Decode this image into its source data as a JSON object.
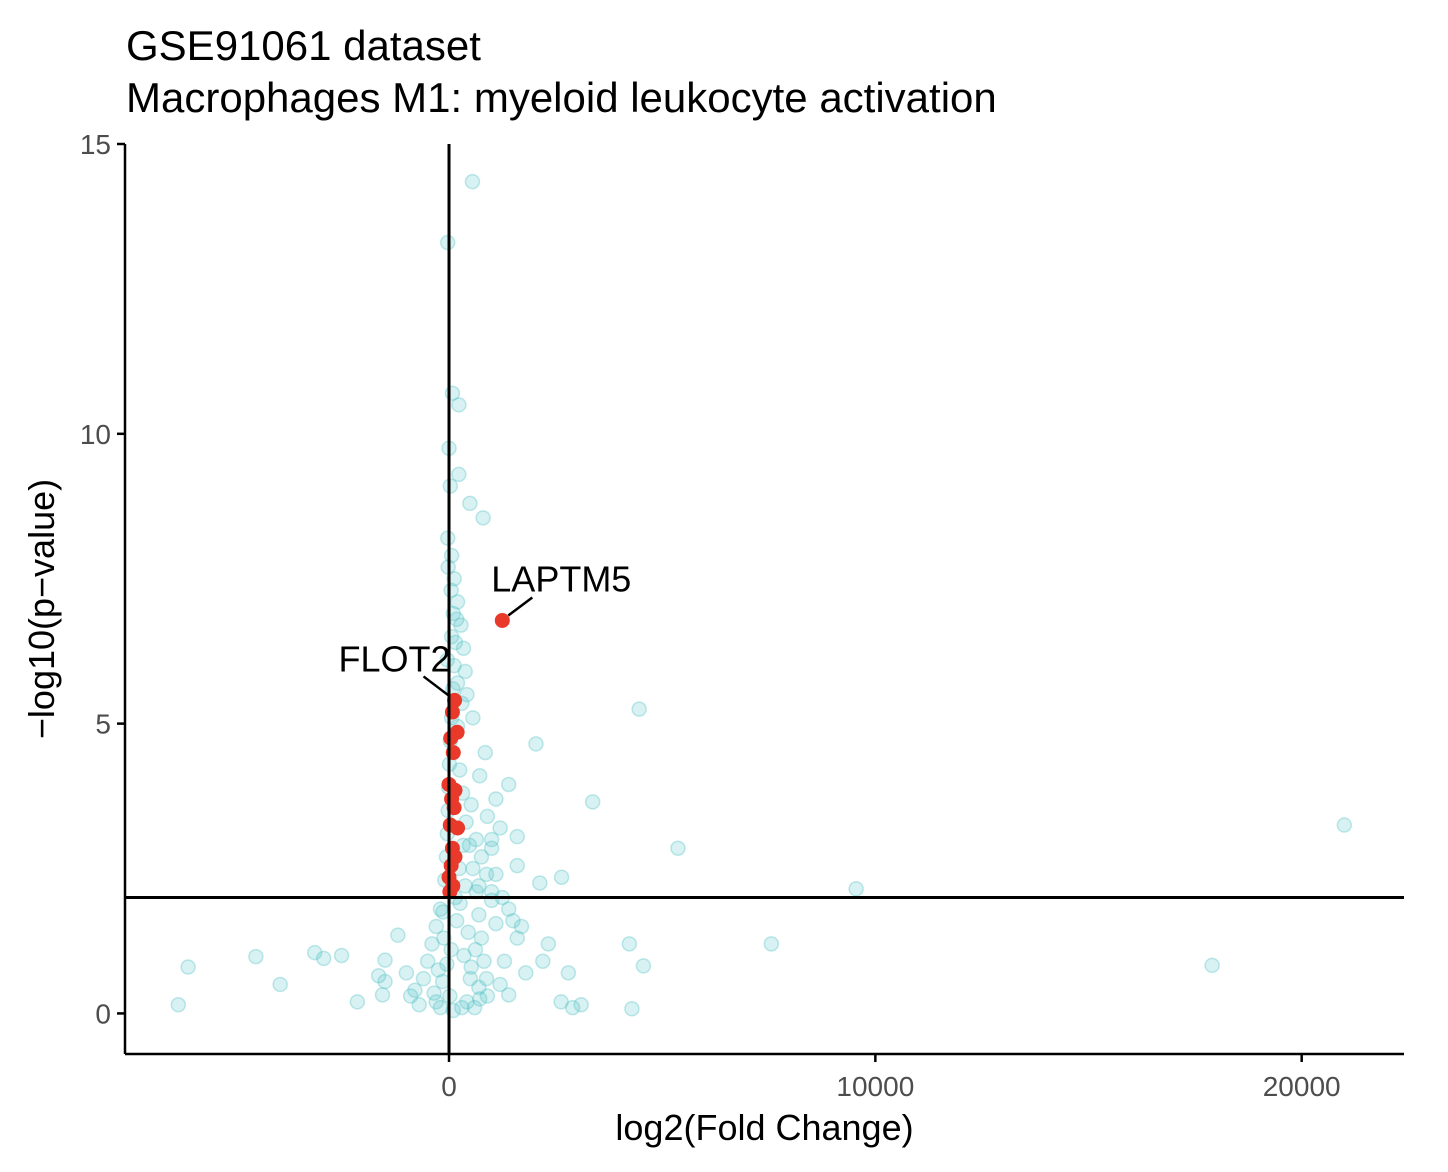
{
  "title_line1": "GSE91061 dataset",
  "title_line2": "Macrophages M1: myeloid leukocyte activation",
  "chart_data": {
    "type": "scatter",
    "xlabel": "log2(Fold Change)",
    "ylabel": "−log10(p−value)",
    "xlim": [
      -7600,
      22400
    ],
    "ylim": [
      -0.7,
      15
    ],
    "x_ticks": [
      0,
      10000,
      20000
    ],
    "x_tick_labels": [
      "0",
      "10000",
      "20000"
    ],
    "y_ticks": [
      0,
      5,
      10,
      15
    ],
    "y_tick_labels": [
      "0",
      "5",
      "10",
      "15"
    ],
    "hline_y": 2,
    "vline_x": 0,
    "grid": false,
    "colors": {
      "background": "#4fbfc3",
      "highlight": "#e8392a",
      "axis": "#000000"
    },
    "series": [
      {
        "role": "background-genes",
        "points": [
          [
            550,
            14.35
          ],
          [
            -30,
            13.3
          ],
          [
            80,
            10.7
          ],
          [
            230,
            10.5
          ],
          [
            0,
            9.75
          ],
          [
            230,
            9.3
          ],
          [
            30,
            9.1
          ],
          [
            490,
            8.8
          ],
          [
            800,
            8.55
          ],
          [
            -30,
            8.2
          ],
          [
            60,
            7.9
          ],
          [
            -20,
            7.7
          ],
          [
            120,
            7.5
          ],
          [
            50,
            7.3
          ],
          [
            200,
            7.1
          ],
          [
            100,
            6.9
          ],
          [
            280,
            6.7
          ],
          [
            60,
            6.5
          ],
          [
            340,
            6.3
          ],
          [
            -40,
            6.1
          ],
          [
            380,
            5.9
          ],
          [
            200,
            5.7
          ],
          [
            420,
            5.5
          ],
          [
            300,
            5.35
          ],
          [
            560,
            5.1
          ],
          [
            4460,
            5.25
          ],
          [
            2040,
            4.65
          ],
          [
            200,
            4.95
          ],
          [
            850,
            4.5
          ],
          [
            720,
            4.1
          ],
          [
            1400,
            3.95
          ],
          [
            3370,
            3.65
          ],
          [
            1100,
            3.7
          ],
          [
            900,
            3.4
          ],
          [
            1200,
            3.2
          ],
          [
            1600,
            3.05
          ],
          [
            5370,
            2.85
          ],
          [
            1000,
            2.85
          ],
          [
            1600,
            2.55
          ],
          [
            2640,
            2.35
          ],
          [
            2130,
            2.25
          ],
          [
            700,
            2.2
          ],
          [
            1000,
            2.1
          ],
          [
            9550,
            2.15
          ],
          [
            21000,
            3.25
          ],
          [
            1000,
            1.95
          ],
          [
            -140,
            1.75
          ],
          [
            1100,
            1.55
          ],
          [
            -1200,
            1.35
          ],
          [
            1600,
            1.3
          ],
          [
            2330,
            1.2
          ],
          [
            4230,
            1.2
          ],
          [
            7560,
            1.2
          ],
          [
            -3150,
            1.05
          ],
          [
            -2520,
            1.0
          ],
          [
            -4530,
            0.98
          ],
          [
            -2940,
            0.95
          ],
          [
            -1500,
            0.92
          ],
          [
            4560,
            0.82
          ],
          [
            -6120,
            0.8
          ],
          [
            17900,
            0.83
          ],
          [
            2800,
            0.7
          ],
          [
            -1650,
            0.65
          ],
          [
            -1500,
            0.55
          ],
          [
            -3960,
            0.5
          ],
          [
            -1560,
            0.32
          ],
          [
            -2150,
            0.2
          ],
          [
            2630,
            0.2
          ],
          [
            3100,
            0.15
          ],
          [
            2900,
            0.1
          ],
          [
            -6350,
            0.15
          ],
          [
            4290,
            0.08
          ],
          [
            1400,
            0.32
          ],
          [
            900,
            0.3
          ],
          [
            700,
            0.45
          ],
          [
            500,
            0.6
          ],
          [
            -800,
            0.4
          ],
          [
            -900,
            0.3
          ],
          [
            -600,
            0.6
          ],
          [
            -500,
            0.9
          ],
          [
            -400,
            1.2
          ],
          [
            -300,
            1.5
          ],
          [
            -200,
            1.8
          ],
          [
            -100,
            2.3
          ],
          [
            -60,
            2.7
          ],
          [
            -40,
            3.1
          ],
          [
            -20,
            3.5
          ],
          [
            -10,
            3.9
          ],
          [
            10,
            4.3
          ],
          [
            30,
            4.7
          ],
          [
            60,
            5.1
          ],
          [
            90,
            5.6
          ],
          [
            120,
            6.0
          ],
          [
            150,
            6.4
          ],
          [
            180,
            6.8
          ],
          [
            250,
            4.2
          ],
          [
            320,
            3.8
          ],
          [
            400,
            3.3
          ],
          [
            480,
            2.9
          ],
          [
            560,
            2.5
          ],
          [
            640,
            2.1
          ],
          [
            700,
            1.7
          ],
          [
            760,
            1.3
          ],
          [
            820,
            0.9
          ],
          [
            880,
            0.6
          ],
          [
            300,
            0.1
          ],
          [
            100,
            0.05
          ],
          [
            -200,
            0.1
          ],
          [
            -300,
            0.2
          ],
          [
            600,
            0.1
          ],
          [
            1500,
            1.6
          ],
          [
            1300,
            0.9
          ],
          [
            1200,
            0.5
          ],
          [
            2200,
            0.9
          ],
          [
            1800,
            0.7
          ],
          [
            350,
            1.0
          ],
          [
            450,
            1.4
          ],
          [
            150,
            2.0
          ],
          [
            240,
            2.5
          ],
          [
            330,
            2.9
          ],
          [
            -150,
            0.55
          ],
          [
            -250,
            0.75
          ],
          [
            -350,
            0.35
          ],
          [
            -700,
            0.15
          ],
          [
            -1000,
            0.7
          ],
          [
            420,
            0.2
          ],
          [
            520,
            0.8
          ],
          [
            620,
            1.1
          ],
          [
            720,
            0.25
          ],
          [
            50,
            1.1
          ],
          [
            -50,
            0.85
          ],
          [
            20,
            0.3
          ],
          [
            180,
            1.6
          ],
          [
            -120,
            1.3
          ],
          [
            260,
            1.9
          ],
          [
            380,
            2.2
          ],
          [
            520,
            3.6
          ],
          [
            640,
            3.0
          ],
          [
            760,
            2.7
          ],
          [
            880,
            2.4
          ],
          [
            1000,
            3.0
          ],
          [
            1100,
            2.4
          ],
          [
            1250,
            2.0
          ],
          [
            1400,
            1.8
          ],
          [
            1700,
            1.5
          ]
        ]
      },
      {
        "role": "pathway-genes",
        "points": [
          [
            1250,
            6.78
          ],
          [
            130,
            5.4
          ],
          [
            80,
            5.2
          ],
          [
            190,
            4.85
          ],
          [
            40,
            4.75
          ],
          [
            100,
            4.5
          ],
          [
            0,
            3.95
          ],
          [
            140,
            3.85
          ],
          [
            60,
            3.7
          ],
          [
            120,
            3.55
          ],
          [
            200,
            3.2
          ],
          [
            30,
            3.25
          ],
          [
            80,
            2.85
          ],
          [
            140,
            2.7
          ],
          [
            50,
            2.55
          ],
          [
            0,
            2.35
          ],
          [
            90,
            2.2
          ],
          [
            20,
            2.1
          ]
        ]
      }
    ],
    "annotations": [
      {
        "text": "LAPTM5",
        "x": 1250,
        "y": 6.78
      },
      {
        "text": "FLOT2",
        "x": 130,
        "y": 5.4
      }
    ]
  }
}
